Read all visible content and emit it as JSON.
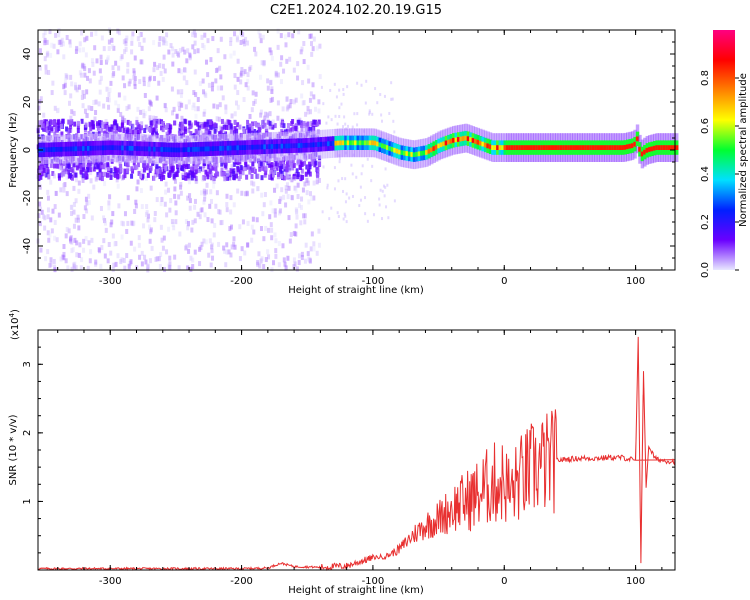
{
  "figure": {
    "title": "C2E1.2024.102.20.19.G15"
  },
  "chart_data": [
    {
      "type": "heatmap",
      "xlabel": "Height of straight line (km)",
      "ylabel": "Frequency (Hz)",
      "xlim": [
        -355,
        130
      ],
      "ylim": [
        -50,
        50
      ],
      "xticks": [
        -300,
        -200,
        -100,
        0,
        100
      ],
      "yticks": [
        -40,
        -20,
        0,
        20,
        40
      ],
      "grid": false,
      "colorbar": {
        "label": "Normalized spectral amplitude",
        "range": [
          0,
          1
        ],
        "ticks": [
          0.0,
          0.2,
          0.4,
          0.6,
          0.8
        ],
        "tick_labels": [
          "0.0",
          "0.2",
          "0.4",
          "0.6",
          "0.8"
        ],
        "colormap": [
          "#e8e8ff",
          "#6a00ff",
          "#0020ff",
          "#00e0ff",
          "#00ff30",
          "#ffff00",
          "#ff8000",
          "#ff0000",
          "#ff0080"
        ]
      },
      "ridge": {
        "description": "dominant frequency track (Hz) vs height",
        "x": [
          -355,
          -300,
          -250,
          -200,
          -150,
          -125,
          -110,
          -100,
          -90,
          -80,
          -70,
          -60,
          -50,
          -40,
          -30,
          -20,
          -10,
          0,
          10,
          30,
          60,
          90,
          98,
          100,
          103,
          108,
          115,
          130
        ],
        "y": [
          0,
          1,
          0,
          1,
          2,
          3,
          3,
          3,
          1,
          -1,
          -2,
          -1,
          2,
          4,
          5,
          3,
          1,
          1,
          1,
          1,
          1,
          1,
          2,
          5,
          -2,
          0,
          1,
          1
        ]
      },
      "noise_extent": {
        "x_max_scatter": -140,
        "note_free": ""
      }
    },
    {
      "type": "line",
      "xlabel": "Height of straight line (km)",
      "ylabel": "SNR (10 * v/v)",
      "y_multiplier_label": "(x10",
      "y_multiplier_exp": "4",
      "xlim": [
        -355,
        130
      ],
      "ylim": [
        0,
        3.5
      ],
      "xticks": [
        -300,
        -200,
        -100,
        0,
        100
      ],
      "yticks": [
        1,
        2,
        3
      ],
      "color": "#e83030",
      "series": [
        {
          "x": [
            -355,
            -300,
            -250,
            -200,
            -180,
            -170,
            -160,
            -140,
            -120,
            -110,
            -100,
            -90,
            -80,
            -70,
            -60,
            -50,
            -40,
            -30,
            -20,
            -10,
            0,
            5,
            10,
            20,
            30,
            40,
            50,
            60,
            70,
            80,
            90,
            95,
            100,
            102,
            104,
            106,
            108,
            110,
            115,
            120,
            130
          ],
          "y": [
            0.02,
            0.02,
            0.02,
            0.02,
            0.03,
            0.1,
            0.05,
            0.04,
            0.06,
            0.12,
            0.18,
            0.2,
            0.3,
            0.5,
            0.65,
            0.75,
            0.9,
            1.0,
            1.1,
            1.25,
            1.3,
            1.1,
            1.3,
            1.45,
            1.55,
            1.6,
            1.62,
            1.63,
            1.63,
            1.64,
            1.64,
            1.62,
            1.6,
            3.4,
            0.1,
            2.9,
            1.2,
            1.8,
            1.62,
            1.6,
            1.58
          ]
        }
      ]
    }
  ]
}
